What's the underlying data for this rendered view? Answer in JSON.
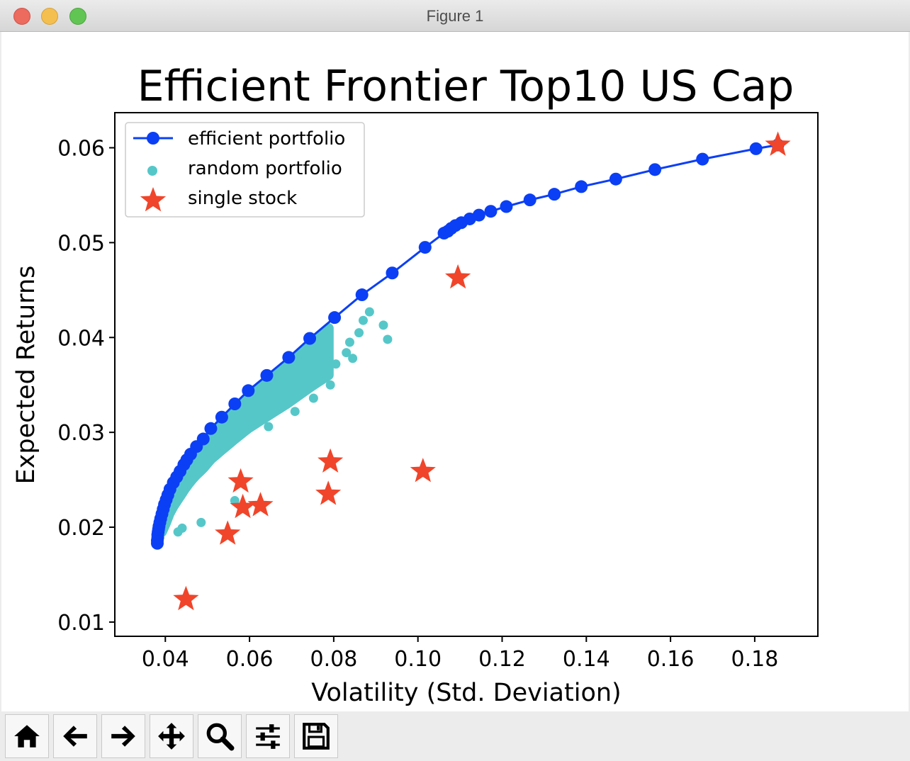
{
  "window": {
    "title": "Figure 1"
  },
  "toolbar": {
    "buttons": [
      {
        "name": "home-icon"
      },
      {
        "name": "back-arrow-icon"
      },
      {
        "name": "forward-arrow-icon"
      },
      {
        "name": "pan-move-icon"
      },
      {
        "name": "zoom-magnifier-icon"
      },
      {
        "name": "configure-subplots-icon"
      },
      {
        "name": "save-floppy-icon"
      }
    ]
  },
  "colors": {
    "efficient": "#0b3ff5",
    "random": "#56c7c9",
    "single": "#f0452a"
  },
  "chart_data": {
    "type": "scatter",
    "title": "Efficient Frontier Top10 US Cap",
    "xlabel": "Volatility (Std. Deviation)",
    "ylabel": "Expected Returns",
    "xlim": [
      0.028,
      0.195
    ],
    "ylim": [
      0.0085,
      0.0637
    ],
    "xticks": [
      "0.04",
      "0.06",
      "0.08",
      "0.10",
      "0.12",
      "0.14",
      "0.16",
      "0.18"
    ],
    "yticks": [
      "0.01",
      "0.02",
      "0.03",
      "0.04",
      "0.05",
      "0.06"
    ],
    "grid": false,
    "legend": {
      "placement": "upper left"
    },
    "series": [
      {
        "name": "efficient portfolio",
        "kind": "line-marker",
        "points": [
          [
            0.0381,
            0.0183
          ],
          [
            0.0381,
            0.0186
          ],
          [
            0.0382,
            0.0189
          ],
          [
            0.0382,
            0.0192
          ],
          [
            0.0383,
            0.0195
          ],
          [
            0.0384,
            0.0198
          ],
          [
            0.0385,
            0.0201
          ],
          [
            0.0387,
            0.0205
          ],
          [
            0.0389,
            0.0209
          ],
          [
            0.0392,
            0.0214
          ],
          [
            0.0395,
            0.0219
          ],
          [
            0.0398,
            0.0224
          ],
          [
            0.0402,
            0.0229
          ],
          [
            0.0406,
            0.0234
          ],
          [
            0.0411,
            0.024
          ],
          [
            0.0419,
            0.0247
          ],
          [
            0.0427,
            0.0253
          ],
          [
            0.0435,
            0.0259
          ],
          [
            0.0444,
            0.0266
          ],
          [
            0.0451,
            0.0271
          ],
          [
            0.046,
            0.0277
          ],
          [
            0.0474,
            0.0285
          ],
          [
            0.049,
            0.0293
          ],
          [
            0.0508,
            0.0304
          ],
          [
            0.0534,
            0.0316
          ],
          [
            0.0565,
            0.033
          ],
          [
            0.0597,
            0.0344
          ],
          [
            0.0641,
            0.036
          ],
          [
            0.0693,
            0.0379
          ],
          [
            0.0743,
            0.0399
          ],
          [
            0.0802,
            0.0421
          ],
          [
            0.0867,
            0.0445
          ],
          [
            0.0939,
            0.0468
          ],
          [
            0.1017,
            0.0495
          ],
          [
            0.1062,
            0.051
          ],
          [
            0.1071,
            0.0512
          ],
          [
            0.1079,
            0.0515
          ],
          [
            0.1089,
            0.0518
          ],
          [
            0.1103,
            0.0521
          ],
          [
            0.1123,
            0.0525
          ],
          [
            0.1145,
            0.0529
          ],
          [
            0.1173,
            0.0533
          ],
          [
            0.121,
            0.0538
          ],
          [
            0.1266,
            0.0545
          ],
          [
            0.1324,
            0.0551
          ],
          [
            0.1388,
            0.0559
          ],
          [
            0.147,
            0.0567
          ],
          [
            0.1563,
            0.0577
          ],
          [
            0.1676,
            0.0588
          ],
          [
            0.1803,
            0.0599
          ],
          [
            0.1855,
            0.0603
          ]
        ]
      },
      {
        "name": "random portfolio",
        "kind": "scatter-dense",
        "points": [
          [
            0.087,
            0.0418
          ],
          [
            0.0885,
            0.0427
          ],
          [
            0.0918,
            0.0413
          ],
          [
            0.0928,
            0.0398
          ],
          [
            0.0845,
            0.0378
          ],
          [
            0.0838,
            0.0395
          ],
          [
            0.086,
            0.0405
          ],
          [
            0.0805,
            0.0372
          ],
          [
            0.083,
            0.0384
          ],
          [
            0.0792,
            0.035
          ],
          [
            0.0752,
            0.0336
          ],
          [
            0.0708,
            0.0322
          ],
          [
            0.0645,
            0.0306
          ],
          [
            0.0565,
            0.0228
          ],
          [
            0.0485,
            0.0205
          ],
          [
            0.044,
            0.0199
          ],
          [
            0.043,
            0.0195
          ]
        ]
      },
      {
        "name": "single stock",
        "kind": "star",
        "points": [
          [
            0.0449,
            0.0124
          ],
          [
            0.0548,
            0.0193
          ],
          [
            0.0584,
            0.0221
          ],
          [
            0.0626,
            0.0223
          ],
          [
            0.0579,
            0.0248
          ],
          [
            0.0787,
            0.0235
          ],
          [
            0.0792,
            0.0269
          ],
          [
            0.1012,
            0.0259
          ],
          [
            0.1095,
            0.0463
          ],
          [
            0.1855,
            0.0603
          ]
        ]
      }
    ]
  }
}
